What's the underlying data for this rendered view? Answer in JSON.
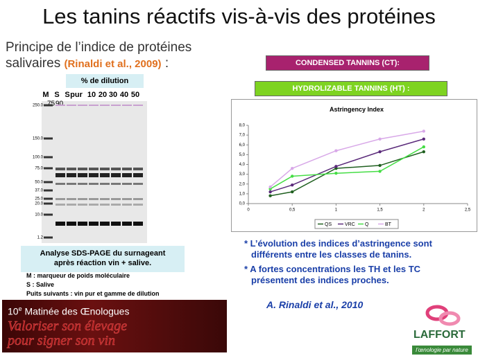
{
  "header": {
    "title": "Les tanins réactifs vis-à-vis des protéines"
  },
  "intro": {
    "line1": "Principe de l’indice de protéines",
    "line2": "salivaires",
    "citation": "(Rinaldi et al., 2009)",
    "colon": ":"
  },
  "gel": {
    "dilution_header": "% de dilution",
    "lanes": [
      "M",
      "S",
      "S",
      "pur",
      "10",
      "20",
      "30",
      "40",
      "50"
    ],
    "sublabels": [
      "75",
      "90"
    ],
    "markers": [
      "250.0",
      "150.0",
      "100.0",
      "75.0",
      "50.0",
      "37.0",
      "25.0",
      "20.0",
      "10.0",
      "1.2"
    ],
    "caption": [
      "Analyse SDS-PAGE du surnageant",
      "après réaction vin + salive."
    ],
    "notes": [
      "M : marqueur de poids moléculaire",
      "S : Salive",
      "Puits suivants : vin pur et gamme de dilution"
    ]
  },
  "banner": {
    "number": "10",
    "sup": "e",
    "title": " Matinée des Œnologues",
    "slogan": [
      "Valoriser son élevage",
      "pour signer son vin"
    ]
  },
  "boxes": {
    "condensed": "CONDENSED TANNINS (CT):",
    "hydrolizable": "HYDROLIZABLE TANNINS (HT) :"
  },
  "chart_data": {
    "type": "line",
    "title": "Astringency Index",
    "x": [
      0.25,
      0.5,
      1,
      1.5,
      2
    ],
    "xlim": [
      0,
      2.5
    ],
    "xticks": [
      0,
      {
        "value": 0.5,
        "label": "0,5"
      },
      1,
      {
        "value": 1.5,
        "label": "1,5"
      },
      2,
      {
        "value": 2.5,
        "label": "2,5"
      }
    ],
    "ylim": [
      0,
      8
    ],
    "yticks": [
      {
        "value": 0,
        "label": "0,0"
      },
      {
        "value": 1,
        "label": "1,0"
      },
      {
        "value": 2,
        "label": "2,0"
      },
      {
        "value": 3,
        "label": "3,0"
      },
      {
        "value": 4,
        "label": "4,0"
      },
      {
        "value": 5,
        "label": "5,0"
      },
      {
        "value": 6,
        "label": "6,0"
      },
      {
        "value": 7,
        "label": "7,0"
      },
      {
        "value": 8,
        "label": "8,0"
      }
    ],
    "legend": "bottom",
    "series": [
      {
        "name": "QS",
        "color": "#1f5f1f",
        "values": [
          0.8,
          1.2,
          3.6,
          3.9,
          5.3
        ]
      },
      {
        "name": "VRC",
        "color": "#5a2a7a",
        "values": [
          1.2,
          1.9,
          3.8,
          5.3,
          6.6
        ]
      },
      {
        "name": "Q",
        "color": "#44dd44",
        "values": [
          1.5,
          2.8,
          3.1,
          3.3,
          5.8
        ]
      },
      {
        "name": "BT",
        "color": "#d8a8e8",
        "values": [
          1.7,
          3.6,
          5.4,
          6.6,
          7.4
        ]
      }
    ]
  },
  "bullets": [
    "* L’évolution des indices d’astringence sont",
    "différents entre les classes de tanins.",
    "* A fortes concentrations les TH et les TC",
    "présentent des indices proches."
  ],
  "reference": "A. Rinaldi et al., 2010",
  "logo": {
    "name": "LAFFORT",
    "tagline": "l’œnologie par nature"
  }
}
